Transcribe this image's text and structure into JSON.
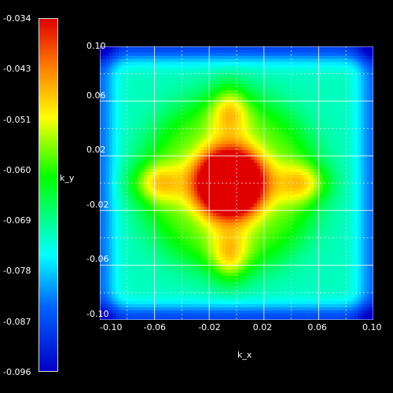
{
  "chart_data": {
    "type": "heatmap",
    "xlabel": "k_x",
    "ylabel": "k_y",
    "xlim": [
      -0.1,
      0.1
    ],
    "ylim": [
      -0.1,
      0.1
    ],
    "x_ticks": [
      "-0.10",
      "-0.06",
      "-0.02",
      "0.02",
      "0.06",
      "0.10"
    ],
    "y_ticks": [
      "0.10",
      "0.06",
      "0.02",
      "-0.02",
      "-0.06",
      "-0.10"
    ],
    "colorbar_ticks": [
      "-0.034",
      "-0.043",
      "-0.051",
      "-0.060",
      "-0.069",
      "-0.078",
      "-0.087",
      "-0.096"
    ],
    "colorbar_range": [
      -0.096,
      -0.034
    ],
    "colormap": "jet",
    "grid": true,
    "x": [
      -0.1,
      -0.06,
      -0.02,
      0.02,
      0.06,
      0.1
    ],
    "y": [
      0.1,
      0.06,
      0.02,
      -0.02,
      -0.06,
      -0.1
    ],
    "z": [
      [
        -0.085,
        -0.08,
        -0.09,
        -0.09,
        -0.08,
        -0.085
      ],
      [
        -0.075,
        -0.055,
        -0.062,
        -0.062,
        -0.055,
        -0.075
      ],
      [
        -0.088,
        -0.065,
        -0.038,
        -0.038,
        -0.065,
        -0.088
      ],
      [
        -0.088,
        -0.065,
        -0.038,
        -0.038,
        -0.065,
        -0.088
      ],
      [
        -0.075,
        -0.055,
        -0.062,
        -0.062,
        -0.055,
        -0.075
      ],
      [
        -0.085,
        -0.08,
        -0.09,
        -0.09,
        -0.08,
        -0.085
      ]
    ],
    "peak_value": -0.034,
    "peak_location": [
      -0.005,
      0.0
    ]
  }
}
